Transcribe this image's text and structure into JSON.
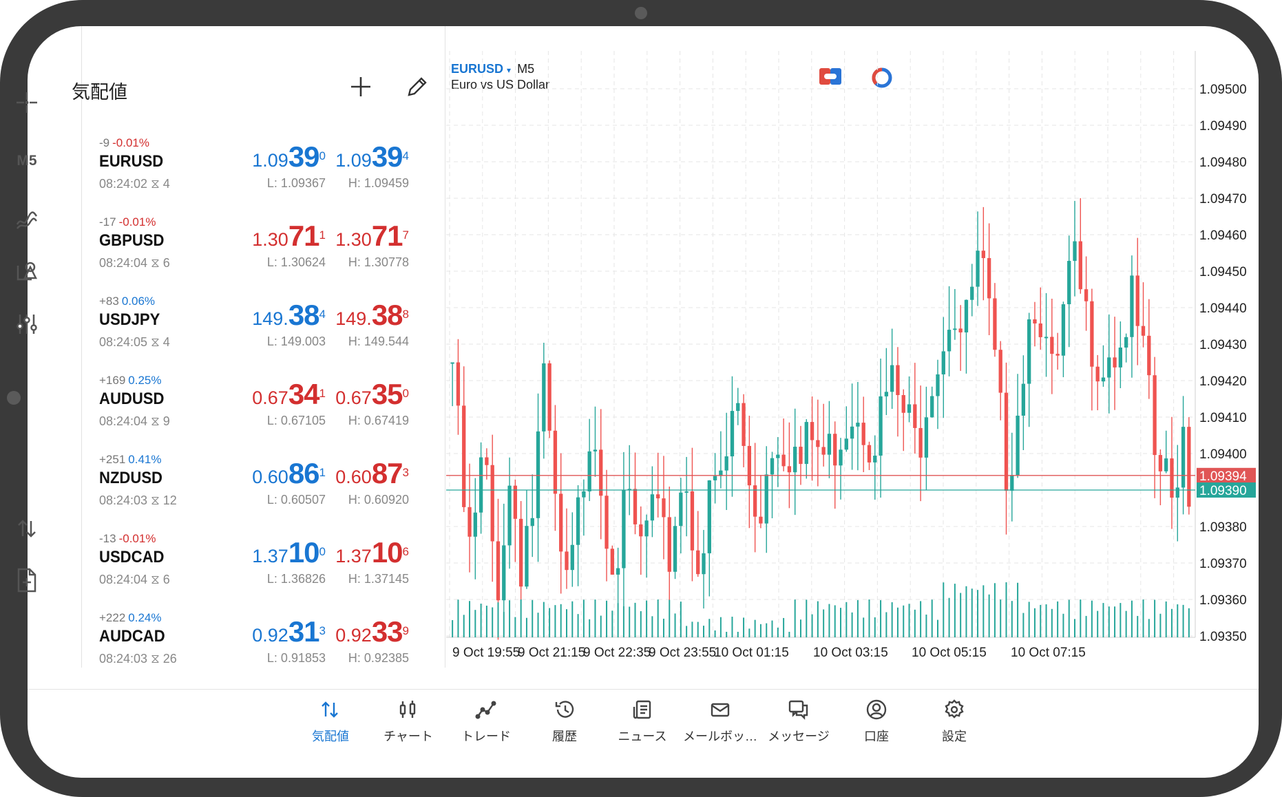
{
  "toolbar": {
    "timeframe": "M5"
  },
  "quotes": {
    "title": "気配値",
    "rows": [
      {
        "change": "-9",
        "pct": "-0.01%",
        "pct_dir": "neg",
        "symbol": "EURUSD",
        "time": "08:24:02",
        "spread": "4",
        "bid": {
          "a": "1.09",
          "b": "39",
          "c": "0",
          "color": "blue"
        },
        "ask": {
          "a": "1.09",
          "b": "39",
          "c": "4",
          "color": "blue"
        },
        "low": "L: 1.09367",
        "high": "H: 1.09459"
      },
      {
        "change": "-17",
        "pct": "-0.01%",
        "pct_dir": "neg",
        "symbol": "GBPUSD",
        "time": "08:24:04",
        "spread": "6",
        "bid": {
          "a": "1.30",
          "b": "71",
          "c": "1",
          "color": "red"
        },
        "ask": {
          "a": "1.30",
          "b": "71",
          "c": "7",
          "color": "red"
        },
        "low": "L: 1.30624",
        "high": "H: 1.30778"
      },
      {
        "change": "+83",
        "pct": "0.06%",
        "pct_dir": "pos",
        "symbol": "USDJPY",
        "time": "08:24:05",
        "spread": "4",
        "bid": {
          "a": "149.",
          "b": "38",
          "c": "4",
          "color": "blue"
        },
        "ask": {
          "a": "149.",
          "b": "38",
          "c": "8",
          "color": "red"
        },
        "low": "L: 149.003",
        "high": "H: 149.544"
      },
      {
        "change": "+169",
        "pct": "0.25%",
        "pct_dir": "pos",
        "symbol": "AUDUSD",
        "time": "08:24:04",
        "spread": "9",
        "bid": {
          "a": "0.67",
          "b": "34",
          "c": "1",
          "color": "red"
        },
        "ask": {
          "a": "0.67",
          "b": "35",
          "c": "0",
          "color": "red"
        },
        "low": "L: 0.67105",
        "high": "H: 0.67419"
      },
      {
        "change": "+251",
        "pct": "0.41%",
        "pct_dir": "pos",
        "symbol": "NZDUSD",
        "time": "08:24:03",
        "spread": "12",
        "bid": {
          "a": "0.60",
          "b": "86",
          "c": "1",
          "color": "blue"
        },
        "ask": {
          "a": "0.60",
          "b": "87",
          "c": "3",
          "color": "red"
        },
        "low": "L: 0.60507",
        "high": "H: 0.60920"
      },
      {
        "change": "-13",
        "pct": "-0.01%",
        "pct_dir": "neg",
        "symbol": "USDCAD",
        "time": "08:24:04",
        "spread": "6",
        "bid": {
          "a": "1.37",
          "b": "10",
          "c": "0",
          "color": "blue"
        },
        "ask": {
          "a": "1.37",
          "b": "10",
          "c": "6",
          "color": "red"
        },
        "low": "L: 1.36826",
        "high": "H: 1.37145"
      },
      {
        "change": "+222",
        "pct": "0.24%",
        "pct_dir": "pos",
        "symbol": "AUDCAD",
        "time": "08:24:03",
        "spread": "26",
        "bid": {
          "a": "0.92",
          "b": "31",
          "c": "3",
          "color": "blue"
        },
        "ask": {
          "a": "0.92",
          "b": "33",
          "c": "9",
          "color": "red"
        },
        "low": "L: 0.91853",
        "high": "H: 0.92385"
      }
    ]
  },
  "chart": {
    "symbol": "EURUSD",
    "symbol_arrow": "▾",
    "timeframe": "M5",
    "description": "Euro vs US Dollar"
  },
  "chart_data": {
    "type": "candlestick",
    "y_ticks": [
      "1.09500",
      "1.09490",
      "1.09480",
      "1.09470",
      "1.09460",
      "1.09450",
      "1.09440",
      "1.09430",
      "1.09420",
      "1.09410",
      "1.09400",
      "1.09390",
      "1.09380",
      "1.09370",
      "1.09360",
      "1.09350"
    ],
    "ylim": [
      1.0935,
      1.095
    ],
    "x_ticks": [
      "9 Oct 19:55",
      "9 Oct 21:15",
      "9 Oct 22:35",
      "9 Oct 23:55",
      "10 Oct 01:15",
      "10 Oct 03:15",
      "10 Oct 05:15",
      "10 Oct 07:15"
    ],
    "ask_line": {
      "value": "1.09394",
      "color": "#e05555"
    },
    "bid_line": {
      "value": "1.09390",
      "color": "#26a69a"
    },
    "up_color": "#26a69a",
    "down_color": "#ef5350",
    "candles_count": 130,
    "price_path": [
      1.09425,
      1.09405,
      1.09385,
      1.09372,
      1.0938,
      1.09395,
      1.09392,
      1.09375,
      1.09365,
      1.09378,
      1.09392,
      1.09385,
      1.0937,
      1.0938,
      1.09382,
      1.094,
      1.09418,
      1.09405,
      1.09385,
      1.09372,
      1.0936,
      1.09368,
      1.0938,
      1.09392,
      1.09408,
      1.0941,
      1.09395,
      1.09385,
      1.09375,
      1.09372,
      1.0938,
      1.09385,
      1.0938,
      1.09372,
      1.09378,
      1.09385,
      1.0938,
      1.09376,
      1.0937,
      1.09378,
      1.09392,
      1.09395,
      1.0938,
      1.09375,
      1.09372,
      1.09382,
      1.09392,
      1.0939,
      1.09392,
      1.09408,
      1.09415,
      1.09405,
      1.09395,
      1.0939,
      1.09382,
      1.09392,
      1.094,
      1.09408,
      1.09405,
      1.094,
      1.09405,
      1.09395,
      1.09398,
      1.09405,
      1.09402,
      1.094,
      1.09398,
      1.09402,
      1.09405,
      1.09408,
      1.09412,
      1.09414,
      1.09412,
      1.09408,
      1.09405,
      1.09408,
      1.09412,
      1.09418,
      1.09418,
      1.09412,
      1.0941,
      1.09405,
      1.09402,
      1.0941,
      1.0942,
      1.09426,
      1.09428,
      1.09435,
      1.09442,
      1.09438,
      1.09432,
      1.09436,
      1.09448,
      1.09452,
      1.09445,
      1.09432,
      1.09418,
      1.09405,
      1.09395,
      1.09405,
      1.09418,
      1.09428,
      1.0944,
      1.09445,
      1.09438,
      1.09425,
      1.09418,
      1.09425,
      1.09438,
      1.09448,
      1.0945,
      1.09442,
      1.09435,
      1.09432,
      1.09428,
      1.09425,
      1.09432,
      1.09428,
      1.0943,
      1.09438,
      1.0944,
      1.09432,
      1.09425,
      1.09412,
      1.09398,
      1.09395,
      1.09392,
      1.09385,
      1.09398,
      1.09408,
      1.09392
    ]
  },
  "nav": [
    {
      "label": "気配値",
      "icon": "quotes-icon",
      "active": true
    },
    {
      "label": "チャート",
      "icon": "chart-icon",
      "active": false
    },
    {
      "label": "トレード",
      "icon": "trade-icon",
      "active": false
    },
    {
      "label": "履歴",
      "icon": "history-icon",
      "active": false
    },
    {
      "label": "ニュース",
      "icon": "news-icon",
      "active": false
    },
    {
      "label": "メールボッ…",
      "icon": "mail-icon",
      "active": false
    },
    {
      "label": "メッセージ",
      "icon": "messages-icon",
      "active": false
    },
    {
      "label": "口座",
      "icon": "account-icon",
      "active": false
    },
    {
      "label": "設定",
      "icon": "settings-icon",
      "active": false
    }
  ]
}
